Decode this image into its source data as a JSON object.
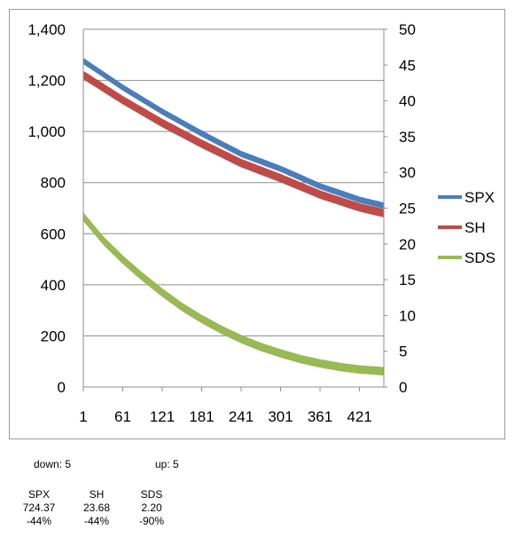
{
  "chart_data": {
    "type": "line",
    "x_ticks": [
      "1",
      "61",
      "121",
      "181",
      "241",
      "301",
      "361",
      "421"
    ],
    "x_range": [
      1,
      458
    ],
    "y_left": {
      "ticks": [
        "0",
        "200",
        "400",
        "600",
        "800",
        "1,000",
        "1,200",
        "1,400"
      ],
      "ylim": [
        0,
        1400
      ]
    },
    "y_right": {
      "ticks": [
        "0",
        "5",
        "10",
        "15",
        "20",
        "25",
        "30",
        "35",
        "40",
        "45",
        "50"
      ],
      "ylim": [
        0,
        50
      ]
    },
    "grid": "horizontal",
    "legend_position": "right",
    "series": [
      {
        "name": "SPX",
        "axis": "left",
        "color": "#4a7ebb",
        "band_width": 22,
        "points": [
          [
            1,
            1276
          ],
          [
            61,
            1172
          ],
          [
            121,
            1078
          ],
          [
            181,
            992
          ],
          [
            241,
            912
          ],
          [
            301,
            854
          ],
          [
            361,
            786
          ],
          [
            421,
            733
          ],
          [
            458,
            710
          ]
        ]
      },
      {
        "name": "SH",
        "axis": "right",
        "color": "#be4b48",
        "band_width": 1.1,
        "points": [
          [
            1,
            43.6
          ],
          [
            61,
            40.1
          ],
          [
            121,
            36.9
          ],
          [
            181,
            34.0
          ],
          [
            241,
            31.3
          ],
          [
            301,
            29.2
          ],
          [
            361,
            26.9
          ],
          [
            421,
            25.1
          ],
          [
            458,
            24.3
          ]
        ]
      },
      {
        "name": "SDS",
        "axis": "right",
        "color": "#98b954",
        "band_width": 1.1,
        "points": [
          [
            1,
            23.8
          ],
          [
            31,
            20.5
          ],
          [
            61,
            17.8
          ],
          [
            91,
            15.4
          ],
          [
            121,
            13.2
          ],
          [
            151,
            11.2
          ],
          [
            181,
            9.5
          ],
          [
            211,
            8.0
          ],
          [
            241,
            6.7
          ],
          [
            271,
            5.6
          ],
          [
            301,
            4.7
          ],
          [
            331,
            3.9
          ],
          [
            361,
            3.3
          ],
          [
            391,
            2.8
          ],
          [
            421,
            2.45
          ],
          [
            458,
            2.2
          ]
        ]
      }
    ]
  },
  "info": {
    "down_label": "down:",
    "down_value": "5",
    "up_label": "up:",
    "up_value": "5"
  },
  "stats": [
    {
      "name": "SPX",
      "value": "724.37",
      "change": "-44%"
    },
    {
      "name": "SH",
      "value": "23.68",
      "change": "-44%"
    },
    {
      "name": "SDS",
      "value": "2.20",
      "change": "-90%"
    }
  ]
}
